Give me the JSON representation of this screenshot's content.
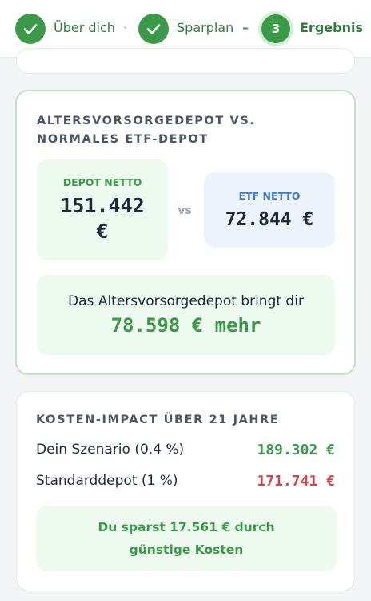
{
  "stepper": {
    "steps": [
      {
        "label": "Über dich"
      },
      {
        "label": "Sparplan"
      },
      {
        "number": "3",
        "label": "Ergebnis"
      }
    ],
    "separators": [
      "·",
      "–"
    ]
  },
  "comparison": {
    "title": "ALTERSVORSORGEDEPOT VS. NORMALES ETF-DEPOT",
    "depot": {
      "label": "DEPOT NETTO",
      "value": "151.442 €"
    },
    "vs": "vs",
    "etf": {
      "label": "ETF NETTO",
      "value": "72.844 €"
    },
    "summary": {
      "text": "Das Altersvorsorgedepot bringt dir",
      "value": "78.598 € mehr"
    }
  },
  "costs": {
    "title": "KOSTEN-IMPACT ÜBER 21 JAHRE",
    "rows": [
      {
        "label": "Dein Szenario (0.4 %)",
        "value": "189.302 €"
      },
      {
        "label": "Standarddepot (1 %)",
        "value": "171.741 €"
      }
    ],
    "savings": "Du sparst 17.561 € durch günstige Kosten"
  }
}
